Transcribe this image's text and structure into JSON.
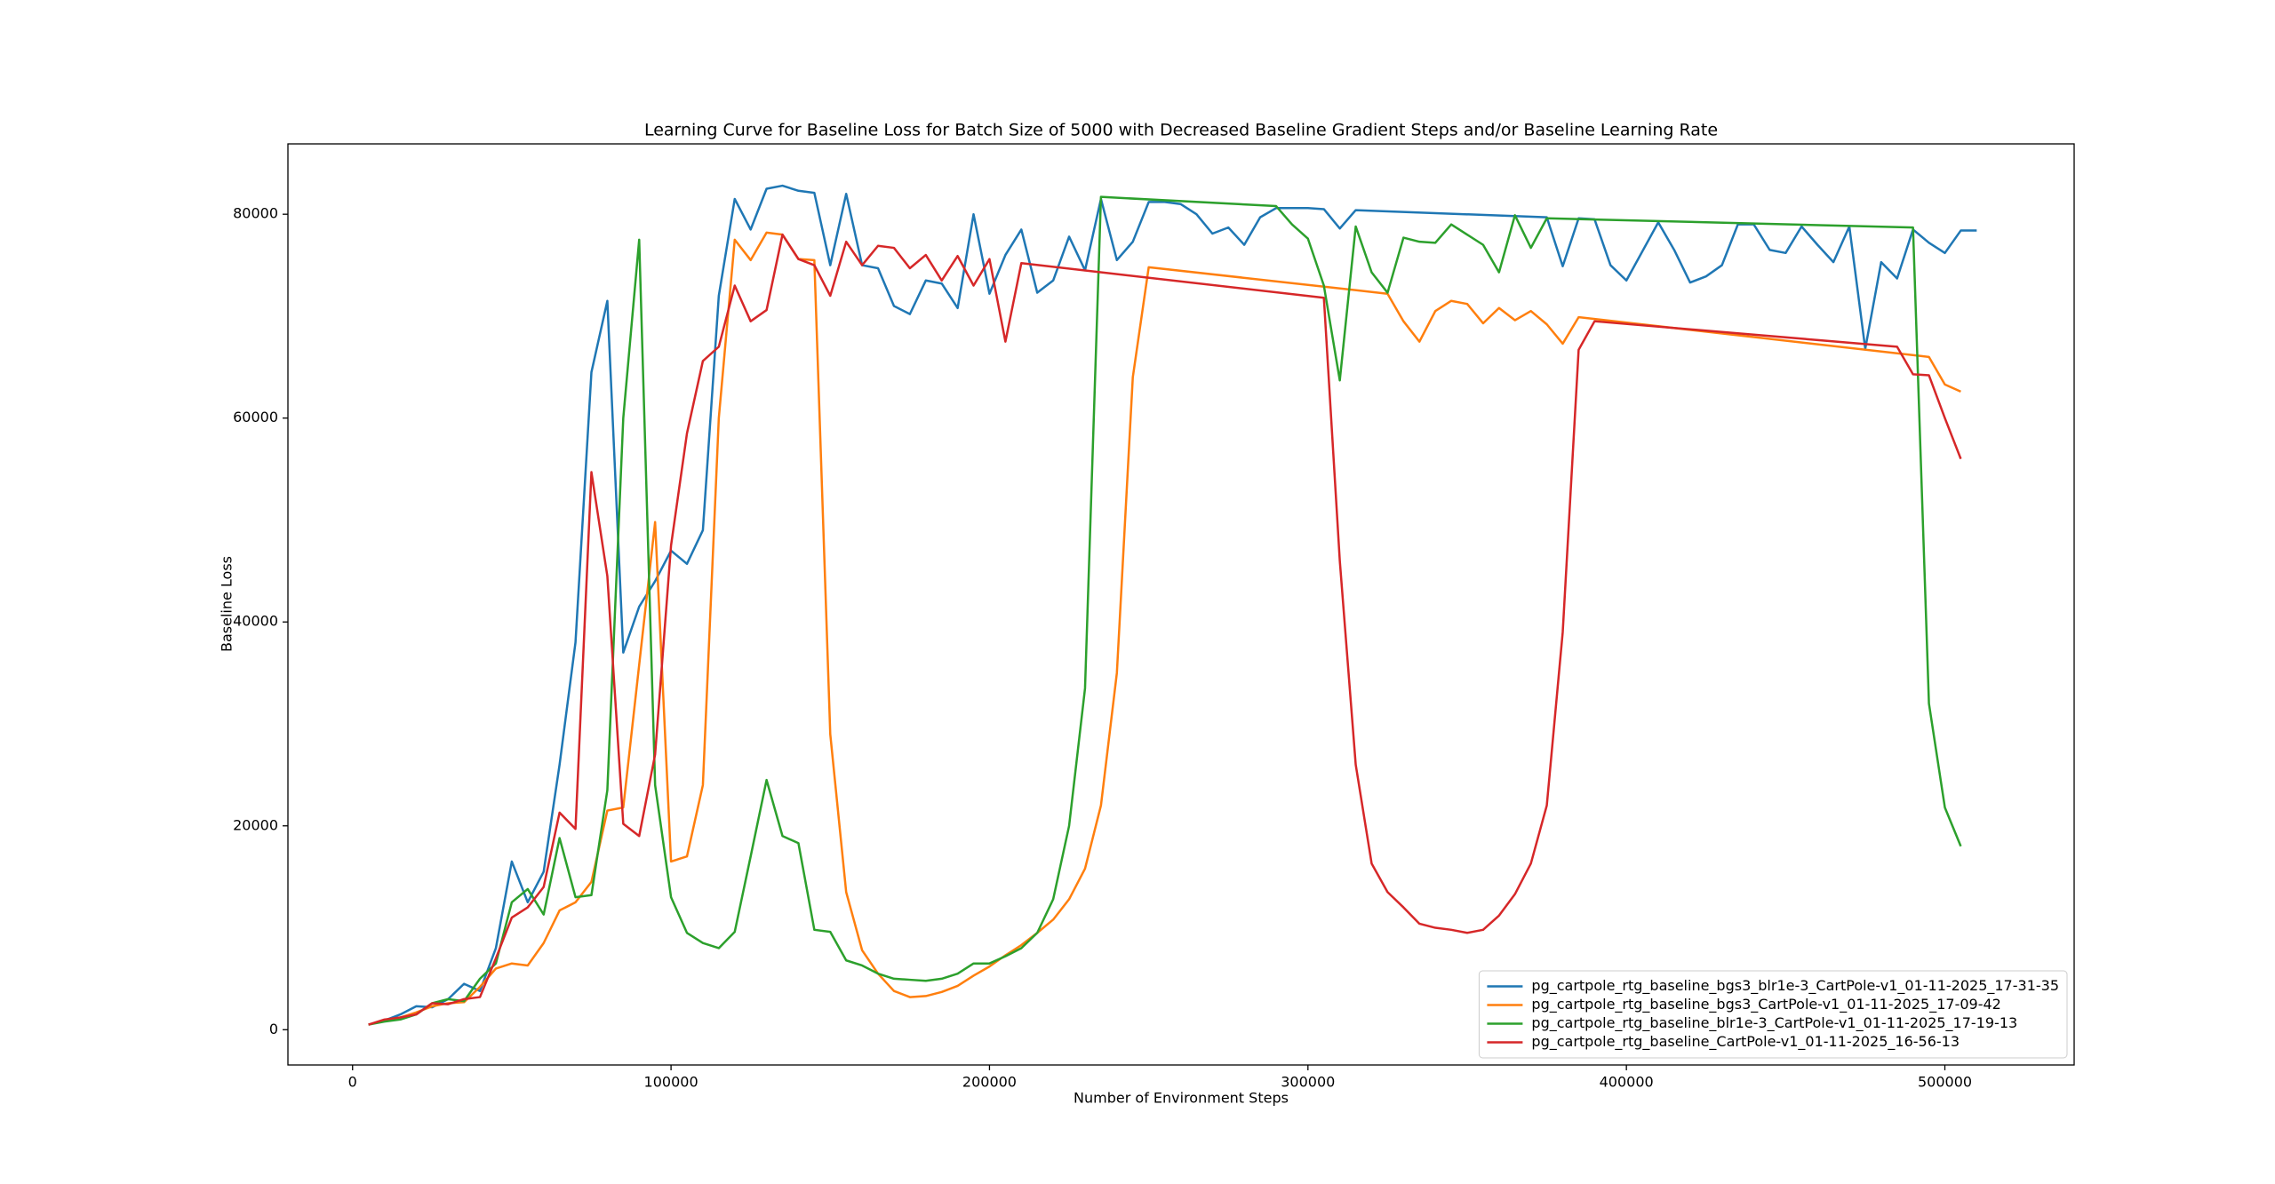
{
  "chart_data": {
    "type": "line",
    "title": "Learning Curve for Baseline Loss for Batch Size of 5000 with Decreased Baseline Gradient Steps and/or Baseline Learning Rate",
    "x_label": "Number of Environment Steps",
    "y_label": "Baseline Loss",
    "xlim": [
      -20300,
      540600
    ],
    "ylim": [
      -3460,
      86900
    ],
    "xticks": [
      0,
      100000,
      200000,
      300000,
      400000,
      500000
    ],
    "yticks": [
      0,
      20000,
      40000,
      60000,
      80000
    ],
    "grid": false,
    "legend": "lower right",
    "series": [
      {
        "name": "pg_cartpole_rtg_baseline_bgs3_blr1e-3_CartPole-v1_01-11-2025_17-31-35",
        "color": "#1f77b4",
        "x": [
          5000,
          10000,
          15000,
          20000,
          25000,
          30000,
          35000,
          40000,
          45000,
          50000,
          55000,
          60000,
          65000,
          70000,
          75000,
          80000,
          85000,
          90000,
          95000,
          100000,
          105000,
          110000,
          115000,
          120000,
          125000,
          130000,
          135000,
          140000,
          145000,
          150000,
          155000,
          160000,
          165000,
          170000,
          175000,
          180000,
          185000,
          190000,
          195000,
          200000,
          205000,
          210000,
          215000,
          220000,
          225000,
          230000,
          235000,
          240000,
          245000,
          250000,
          255000,
          260000,
          265000,
          270000,
          275000,
          280000,
          285000,
          290000,
          300000,
          305000,
          310000,
          315000,
          375000,
          380000,
          385000,
          390000,
          395000,
          400000,
          410000,
          415000,
          420000,
          425000,
          430000,
          435000,
          440000,
          445000,
          450000,
          455000,
          460000,
          465000,
          470000,
          475000,
          480000,
          485000,
          490000,
          495000,
          500000,
          505000,
          510000
        ],
        "values": [
          500,
          900,
          1500,
          2300,
          2200,
          3000,
          4500,
          3800,
          8000,
          16500,
          12500,
          15500,
          26000,
          38000,
          64500,
          71500,
          37000,
          41500,
          44000,
          47000,
          45700,
          49000,
          72000,
          81500,
          78500,
          82500,
          82800,
          82300,
          82100,
          75000,
          82000,
          75000,
          74700,
          71000,
          70200,
          73500,
          73200,
          70800,
          80000,
          72200,
          76000,
          78500,
          72300,
          73500,
          77800,
          74500,
          81500,
          75500,
          77300,
          81200,
          81200,
          81000,
          80000,
          78100,
          78700,
          77000,
          79700,
          80600,
          80600,
          80500,
          78600,
          80400,
          79700,
          74900,
          79600,
          79500,
          75000,
          73500,
          79200,
          76500,
          73300,
          73900,
          75000,
          79000,
          79000,
          76500,
          76200,
          78800,
          77000,
          75300,
          78800,
          66800,
          75300,
          73700,
          78500,
          77200,
          76200,
          78400,
          78400
        ]
      },
      {
        "name": "pg_cartpole_rtg_baseline_bgs3_CartPole-v1_01-11-2025_17-09-42",
        "color": "#ff7f0e",
        "x": [
          5000,
          10000,
          15000,
          20000,
          25000,
          30000,
          35000,
          40000,
          45000,
          50000,
          55000,
          60000,
          65000,
          70000,
          75000,
          80000,
          85000,
          95000,
          100000,
          105000,
          110000,
          115000,
          120000,
          125000,
          130000,
          135000,
          140000,
          145000,
          150000,
          155000,
          160000,
          165000,
          170000,
          175000,
          180000,
          185000,
          190000,
          195000,
          200000,
          205000,
          210000,
          215000,
          220000,
          225000,
          230000,
          235000,
          240000,
          245000,
          250000,
          325000,
          330000,
          335000,
          340000,
          345000,
          350000,
          355000,
          360000,
          365000,
          370000,
          375000,
          380000,
          385000,
          495000,
          500000,
          505000
        ],
        "values": [
          500,
          900,
          1200,
          1700,
          2300,
          2600,
          2700,
          4200,
          6000,
          6500,
          6300,
          8500,
          11700,
          12500,
          14500,
          21500,
          21800,
          49800,
          16500,
          17000,
          24000,
          60000,
          77500,
          75500,
          78200,
          78000,
          75600,
          75500,
          29000,
          13500,
          7800,
          5500,
          3800,
          3200,
          3300,
          3700,
          4300,
          5300,
          6200,
          7300,
          8300,
          9500,
          10800,
          12800,
          15800,
          22000,
          35000,
          64000,
          74800,
          72200,
          69500,
          67500,
          70500,
          71500,
          71200,
          69300,
          70800,
          69600,
          70500,
          69200,
          67300,
          69900,
          66000,
          63300,
          62600
        ]
      },
      {
        "name": "pg_cartpole_rtg_baseline_blr1e-3_CartPole-v1_01-11-2025_17-19-13",
        "color": "#2ca02c",
        "x": [
          5000,
          10000,
          15000,
          20000,
          25000,
          30000,
          35000,
          40000,
          45000,
          50000,
          55000,
          60000,
          65000,
          70000,
          75000,
          80000,
          85000,
          90000,
          95000,
          100000,
          105000,
          110000,
          115000,
          120000,
          125000,
          130000,
          135000,
          140000,
          145000,
          150000,
          155000,
          160000,
          165000,
          170000,
          175000,
          180000,
          185000,
          190000,
          195000,
          200000,
          205000,
          210000,
          215000,
          220000,
          225000,
          230000,
          235000,
          290000,
          295000,
          300000,
          305000,
          310000,
          315000,
          320000,
          325000,
          330000,
          335000,
          340000,
          345000,
          350000,
          355000,
          360000,
          365000,
          370000,
          375000,
          490000,
          495000,
          500000,
          505000
        ],
        "values": [
          500,
          800,
          1000,
          1500,
          2600,
          3000,
          2800,
          5000,
          6500,
          12500,
          13800,
          11300,
          18800,
          13000,
          13200,
          23500,
          60000,
          77500,
          24000,
          13000,
          9500,
          8500,
          8000,
          9600,
          17000,
          24500,
          19000,
          18300,
          9800,
          9600,
          6800,
          6300,
          5500,
          5000,
          4900,
          4800,
          5000,
          5500,
          6500,
          6500,
          7200,
          8000,
          9500,
          12800,
          20000,
          33500,
          81700,
          80800,
          79000,
          77600,
          73000,
          63700,
          78800,
          74300,
          72300,
          77700,
          77300,
          77200,
          79000,
          78000,
          77000,
          74300,
          79900,
          76700,
          79600,
          78700,
          32000,
          21800,
          18000
        ]
      },
      {
        "name": "pg_cartpole_rtg_baseline_CartPole-v1_01-11-2025_16-56-13",
        "color": "#d62728",
        "x": [
          5000,
          10000,
          15000,
          20000,
          25000,
          30000,
          35000,
          40000,
          45000,
          50000,
          55000,
          60000,
          65000,
          70000,
          75000,
          80000,
          85000,
          90000,
          95000,
          100000,
          105000,
          110000,
          115000,
          120000,
          125000,
          130000,
          135000,
          140000,
          145000,
          150000,
          155000,
          160000,
          165000,
          170000,
          175000,
          180000,
          185000,
          190000,
          195000,
          200000,
          205000,
          210000,
          305000,
          310000,
          315000,
          320000,
          325000,
          330000,
          335000,
          340000,
          345000,
          350000,
          355000,
          360000,
          365000,
          370000,
          375000,
          380000,
          385000,
          390000,
          485000,
          490000,
          495000,
          500000,
          505000
        ],
        "values": [
          500,
          1000,
          1200,
          1500,
          2600,
          2500,
          3000,
          3200,
          7000,
          11000,
          12000,
          14000,
          21300,
          19700,
          54700,
          44500,
          20200,
          19000,
          27000,
          47500,
          58500,
          65600,
          67000,
          73000,
          69500,
          70600,
          78000,
          75600,
          75000,
          72000,
          77300,
          75000,
          76900,
          76700,
          74700,
          76000,
          73500,
          75900,
          73000,
          75600,
          67500,
          75200,
          71800,
          46000,
          26000,
          16300,
          13500,
          12000,
          10400,
          10000,
          9800,
          9500,
          9800,
          11200,
          13300,
          16300,
          22000,
          39000,
          66700,
          69500,
          67000,
          64300,
          64200,
          60000,
          56000
        ]
      }
    ]
  }
}
